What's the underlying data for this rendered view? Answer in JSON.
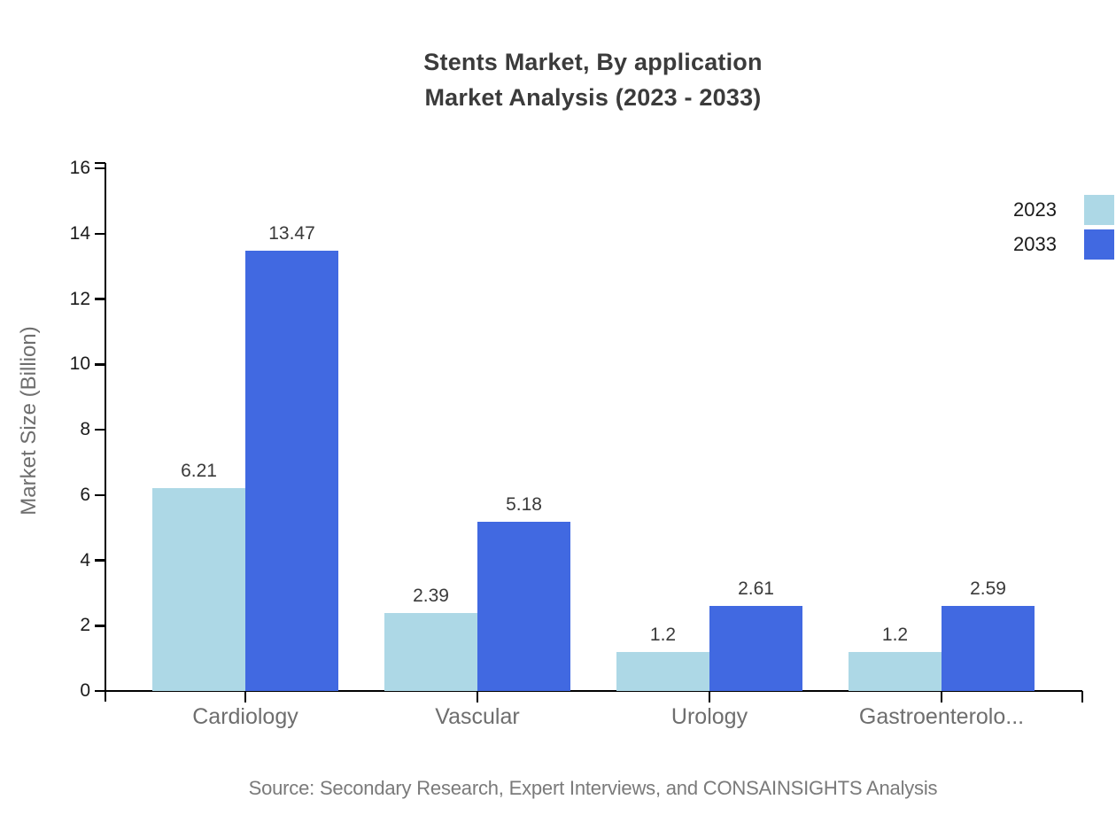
{
  "title": {
    "line1": "Stents Market, By application",
    "line2": "Market Analysis (2023 - 2033)"
  },
  "source_note": "Source: Secondary Research, Expert Interviews, and CONSAINSIGHTS Analysis",
  "chart_data": {
    "type": "bar",
    "title": "Stents Market, By application",
    "subtitle": "Market Analysis (2023 - 2033)",
    "categories": [
      "Cardiology",
      "Vascular",
      "Urology",
      "Gastroenterolo..."
    ],
    "series": [
      {
        "name": "2023",
        "color": "#ADD8E6",
        "values": [
          6.21,
          2.39,
          1.2,
          1.2
        ]
      },
      {
        "name": "2033",
        "color": "#4169E1",
        "values": [
          13.47,
          5.18,
          2.61,
          2.59
        ]
      }
    ],
    "xlabel": "",
    "ylabel": "Market Size (Billion)",
    "ylim": [
      0,
      16
    ],
    "ytick_step": 2,
    "yticks": [
      0,
      2,
      4,
      6,
      8,
      10,
      12,
      14,
      16
    ],
    "grid": false,
    "value_labels": true,
    "legend_position": "top-right",
    "colors": {
      "axis": "#000000",
      "ytick_label": "#1a1a1a",
      "category_label": "#6e6e6e",
      "value_label": "#3a3a3a",
      "title": "#3b3b3b",
      "source": "#7a7a7a",
      "legend_label": "#1a1a1a",
      "background": "#ffffff"
    }
  }
}
